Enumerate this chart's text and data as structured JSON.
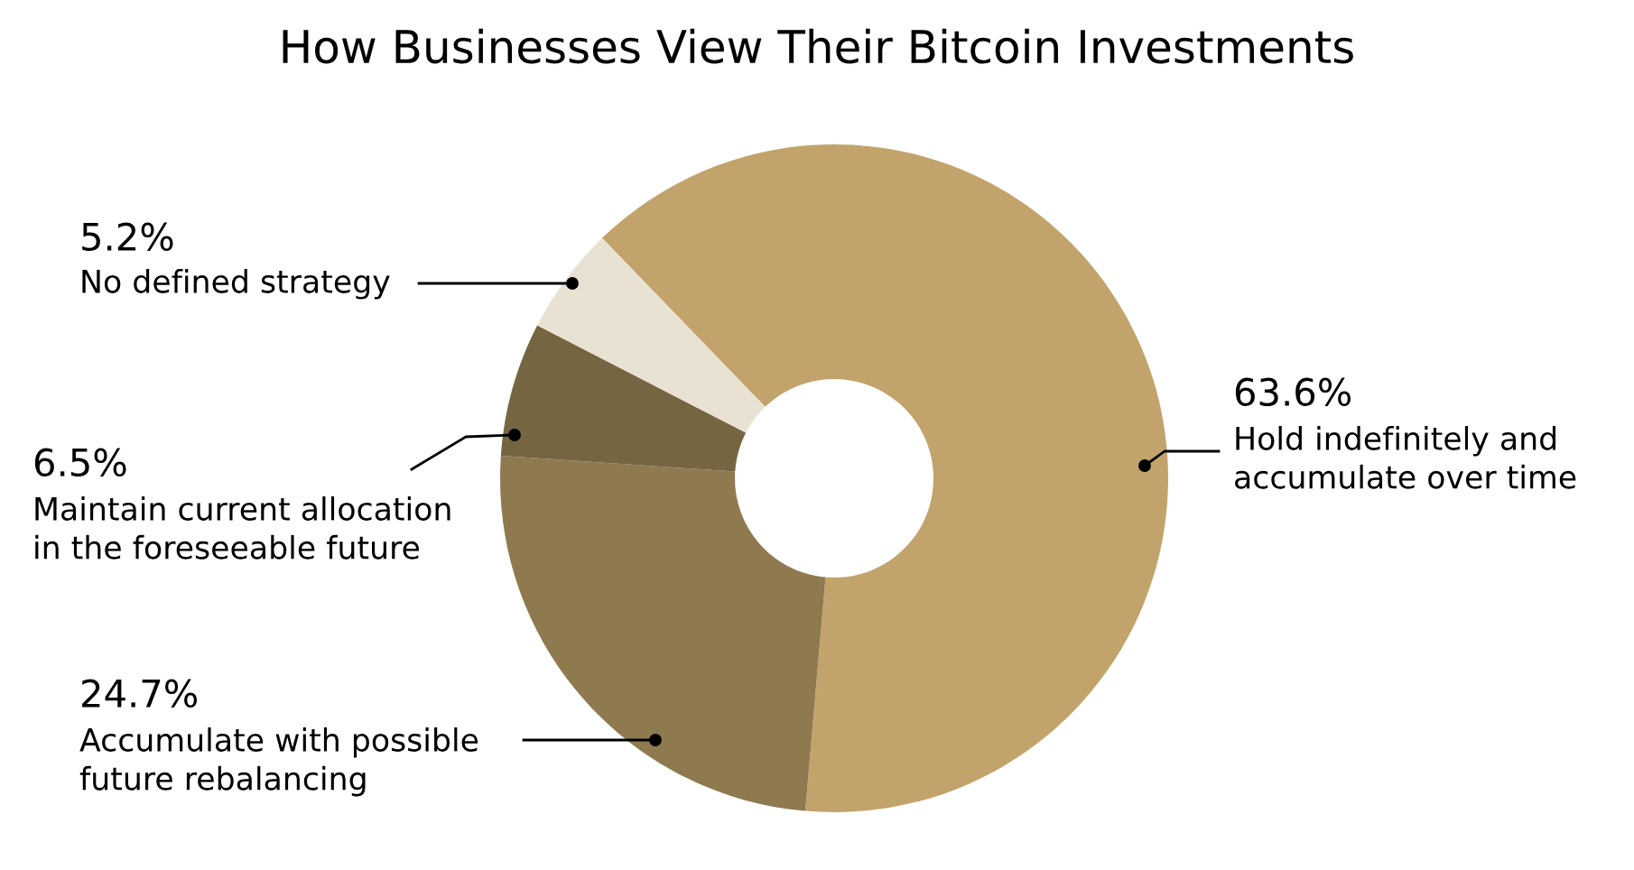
{
  "chart_data": {
    "type": "donut",
    "title": "How Businesses View Their Bitcoin Investments",
    "categories": [
      "Hold indefinitely and\naccumulate over time",
      "Accumulate with possible\nfuture rebalancing",
      "Maintain current allocation\nin the foreseeable future",
      "No defined strategy"
    ],
    "values": [
      63.6,
      24.7,
      6.5,
      5.2
    ],
    "value_labels": [
      "63.6%",
      "24.7%",
      "6.5%",
      "5.2%"
    ],
    "colors": [
      "#c2a36b",
      "#8f7a50",
      "#756541",
      "#e9e2d3"
    ]
  }
}
